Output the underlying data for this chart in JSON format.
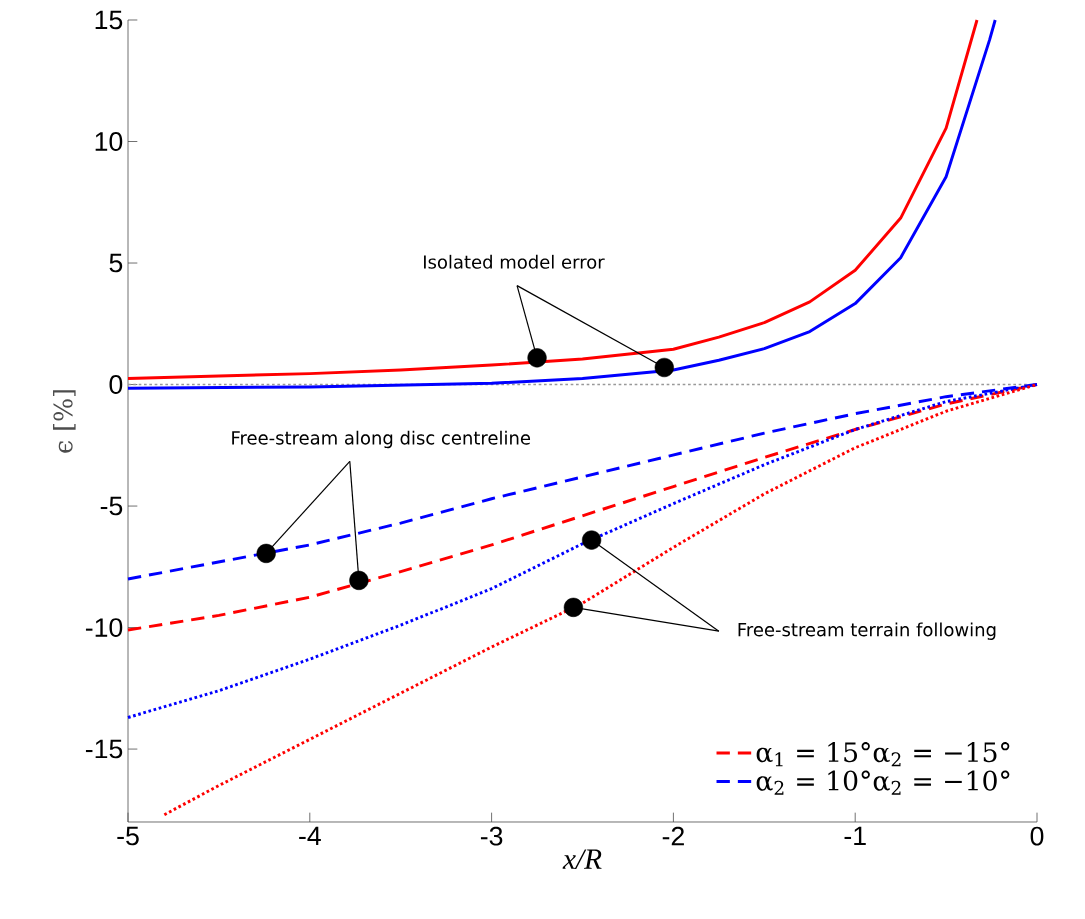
{
  "chart_data": {
    "type": "line",
    "xlabel": "x/R",
    "ylabel": "ϵ [%]",
    "x": [
      -5,
      -4.5,
      -4,
      -3.5,
      -3,
      -2.5,
      -2,
      -1.5,
      -1,
      -0.5,
      0
    ],
    "xlim": [
      -5,
      0
    ],
    "ylim": [
      -18,
      15
    ],
    "xticks": [
      -5,
      -4,
      -3,
      -2,
      -1,
      0
    ],
    "yticks": [
      -15,
      -10,
      -5,
      0,
      5,
      10,
      15
    ],
    "series": [
      {
        "color": "#ff0000",
        "line_style": "solid",
        "x": [
          -5,
          -4.5,
          -4,
          -3.5,
          -3,
          -2.5,
          -2,
          -1.75,
          -1.5,
          -1.25,
          -1,
          -0.75,
          -0.5,
          -0.33
        ],
        "values": [
          0.25,
          0.35,
          0.45,
          0.6,
          0.8,
          1.05,
          1.45,
          1.95,
          2.55,
          3.4,
          4.7,
          6.85,
          10.55,
          15
        ]
      },
      {
        "color": "#0000ff",
        "line_style": "solid",
        "x": [
          -5,
          -4,
          -3,
          -2.5,
          -2,
          -1.75,
          -1.5,
          -1.25,
          -1,
          -0.75,
          -0.5,
          -0.26,
          -0.23
        ],
        "values": [
          -0.15,
          -0.1,
          0.05,
          0.25,
          0.6,
          1.0,
          1.48,
          2.18,
          3.33,
          5.22,
          8.55,
          14.2,
          15
        ]
      },
      {
        "name": "α$_{1}$ = 15°α$_{2}$ = −15°",
        "color": "#ff0000",
        "line_style": "dashed",
        "values": [
          -10.1,
          -9.5,
          -8.75,
          -7.7,
          -6.6,
          -5.4,
          -4.2,
          -3.0,
          -1.85,
          -0.8,
          0
        ]
      },
      {
        "name": "α$_{2}$ = 10°α$_{2}$ = −10°",
        "color": "#0000ff",
        "line_style": "dashed",
        "values": [
          -8.0,
          -7.3,
          -6.6,
          -5.7,
          -4.7,
          -3.8,
          -2.9,
          -2.0,
          -1.2,
          -0.5,
          0
        ]
      },
      {
        "color": "#0000ff",
        "line_style": "dotted",
        "values": [
          -13.7,
          -12.6,
          -11.3,
          -9.9,
          -8.4,
          -6.55,
          -4.9,
          -3.3,
          -1.85,
          -0.7,
          0
        ]
      },
      {
        "color": "#ff0000",
        "line_style": "dotted",
        "x": [
          -4.8,
          -4.5,
          -4,
          -3.5,
          -3,
          -2.5,
          -2,
          -1.5,
          -1,
          -0.5,
          0
        ],
        "values": [
          -17.7,
          -16.5,
          -14.6,
          -12.7,
          -10.8,
          -9.0,
          -6.7,
          -4.5,
          -2.6,
          -1.1,
          0
        ]
      },
      {
        "type": "scatter",
        "color": "#000000",
        "marker": "circle",
        "x": [
          -2.75,
          -2.05,
          -4.24,
          -3.73,
          -2.45,
          -2.55
        ],
        "values": [
          1.1,
          0.7,
          -6.95,
          -8.06,
          -6.4,
          -9.17
        ]
      }
    ],
    "ref_lines": [
      {
        "axis": "y",
        "value": 0,
        "color": "#999999",
        "line_style": "dotted"
      }
    ],
    "annotations": [
      {
        "text": "Isolated model error",
        "x": -2.75,
        "y": 1.1
      },
      {
        "text": "Free-stream along disc centreline",
        "x": -4.24,
        "y": -6.95
      },
      {
        "text": "Free-stream terrain following",
        "x": -2.45,
        "y": -6.4
      }
    ],
    "legend": "bottom right"
  }
}
